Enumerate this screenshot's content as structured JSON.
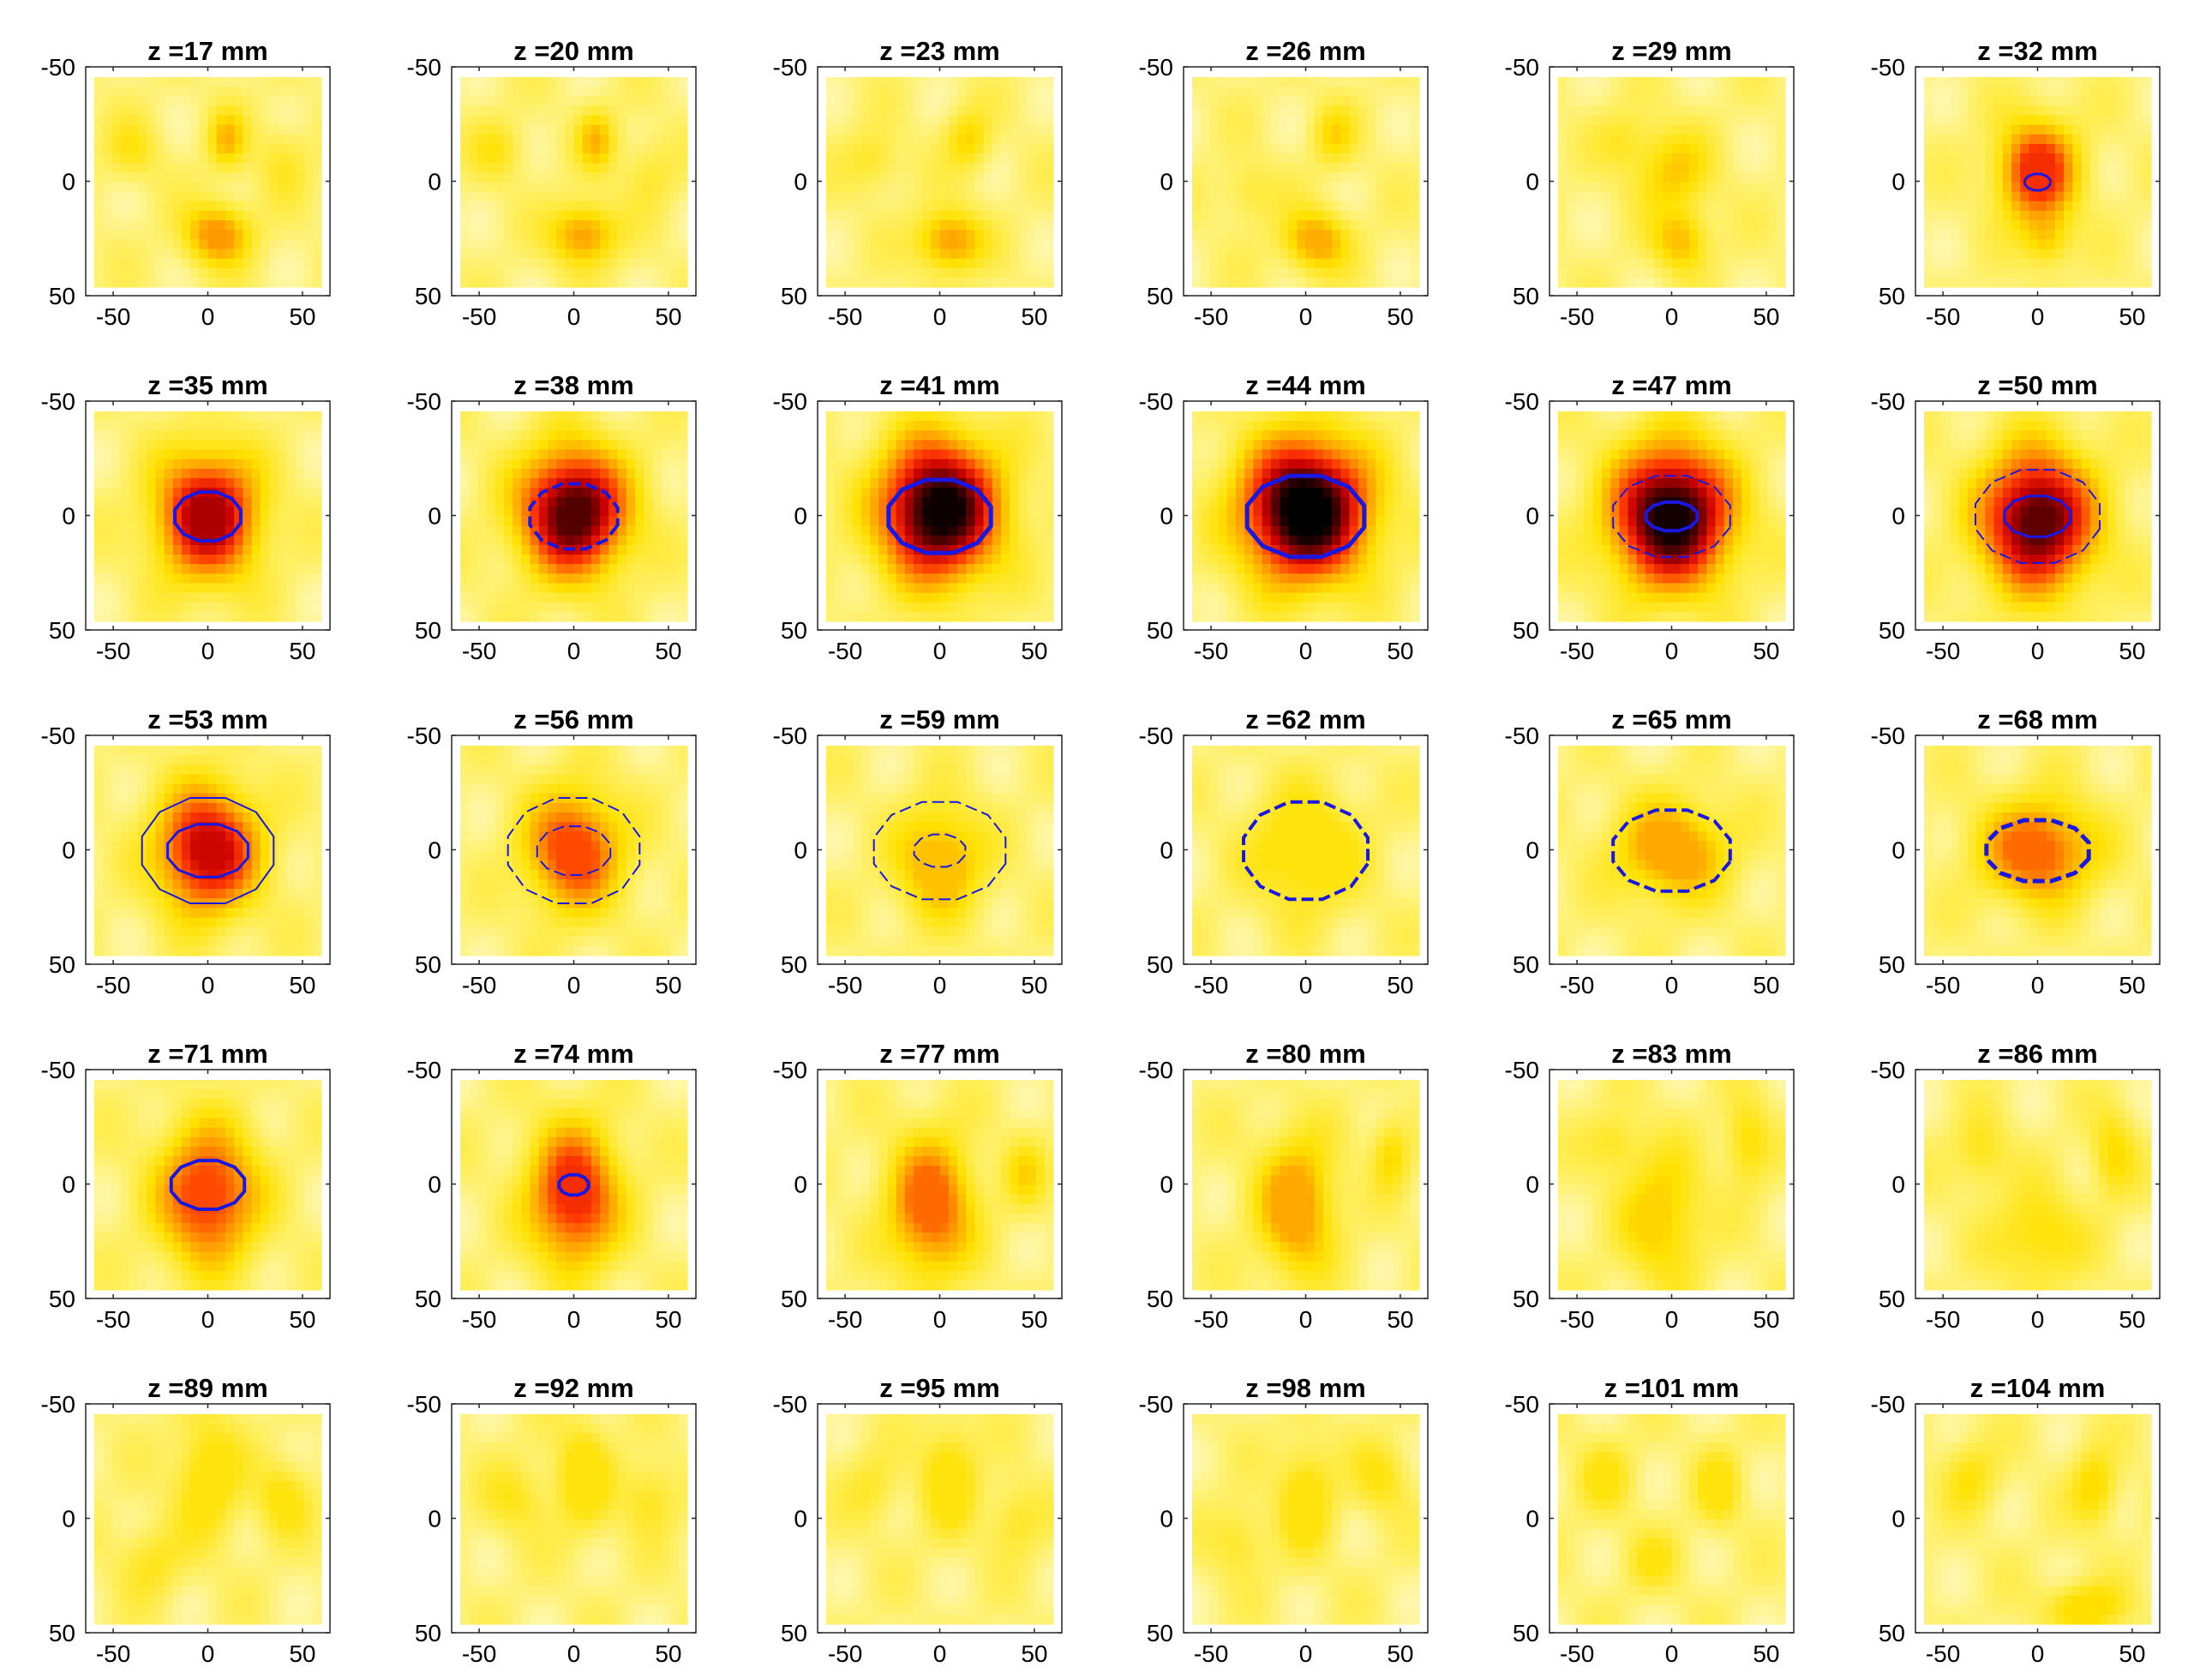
{
  "figure": {
    "description_units": "mm",
    "colormap": [
      "#ffffff",
      "#fff06a",
      "#ffe100",
      "#ff9a00",
      "#ff3a00",
      "#c80000",
      "#5a0000",
      "#000000"
    ]
  },
  "chart_data": {
    "type": "heatmap",
    "grid": {
      "rows": 5,
      "cols": 6
    },
    "x_ticks": [
      "-50",
      "0",
      "50"
    ],
    "y_ticks": [
      "-50",
      "0",
      "50"
    ],
    "xlim": [
      -60,
      60
    ],
    "ylim": [
      -50,
      50
    ],
    "panels": [
      {
        "title": "z =17 mm",
        "z": 17,
        "peak": 0.38,
        "blobs": [
          [
            5,
            25,
            0.34,
            12,
            10
          ],
          [
            10,
            -20,
            0.22,
            7,
            10
          ],
          [
            -40,
            -15,
            0.12,
            10,
            10
          ],
          [
            40,
            -10,
            0.1,
            10,
            12
          ]
        ],
        "contours": []
      },
      {
        "title": "z =20 mm",
        "z": 20,
        "peak": 0.37,
        "blobs": [
          [
            5,
            25,
            0.32,
            12,
            10
          ],
          [
            12,
            -20,
            0.22,
            7,
            10
          ],
          [
            -40,
            -15,
            0.12,
            10,
            10
          ],
          [
            40,
            -5,
            0.1,
            10,
            12
          ]
        ],
        "contours": []
      },
      {
        "title": "z =23 mm",
        "z": 23,
        "peak": 0.36,
        "blobs": [
          [
            5,
            28,
            0.32,
            12,
            10
          ],
          [
            15,
            -20,
            0.18,
            8,
            10
          ],
          [
            -35,
            -10,
            0.12,
            10,
            10
          ]
        ],
        "contours": []
      },
      {
        "title": "z =26 mm",
        "z": 26,
        "peak": 0.34,
        "blobs": [
          [
            5,
            28,
            0.3,
            12,
            10
          ],
          [
            15,
            -22,
            0.16,
            8,
            10
          ],
          [
            -30,
            5,
            0.1,
            10,
            10
          ]
        ],
        "contours": []
      },
      {
        "title": "z =29 mm",
        "z": 29,
        "peak": 0.3,
        "blobs": [
          [
            0,
            -5,
            0.2,
            14,
            14
          ],
          [
            5,
            28,
            0.24,
            10,
            10
          ],
          [
            -25,
            -20,
            0.1,
            10,
            10
          ]
        ],
        "contours": []
      },
      {
        "title": "z =32 mm",
        "z": 32,
        "peak": 0.55,
        "blobs": [
          [
            0,
            -5,
            0.55,
            14,
            16
          ],
          [
            5,
            28,
            0.18,
            9,
            9
          ]
        ],
        "contours": [
          {
            "rx": 7,
            "ry": 4,
            "w": 3,
            "dashed": false
          }
        ]
      },
      {
        "title": "z =35 mm",
        "z": 35,
        "peak": 0.7,
        "blobs": [
          [
            0,
            0,
            0.7,
            18,
            20
          ]
        ],
        "contours": [
          {
            "rx": 18,
            "ry": 12,
            "w": 4,
            "dashed": false
          }
        ]
      },
      {
        "title": "z =38 mm",
        "z": 38,
        "peak": 0.82,
        "blobs": [
          [
            0,
            -2,
            0.82,
            19,
            20
          ]
        ],
        "contours": [
          {
            "rx": 24,
            "ry": 16,
            "w": 4,
            "dashed": true
          }
        ]
      },
      {
        "title": "z =41 mm",
        "z": 41,
        "peak": 0.93,
        "blobs": [
          [
            0,
            -3,
            0.93,
            21,
            22
          ]
        ],
        "contours": [
          {
            "rx": 28,
            "ry": 18,
            "w": 5,
            "dashed": false
          }
        ]
      },
      {
        "title": "z =44 mm",
        "z": 44,
        "peak": 1.0,
        "blobs": [
          [
            0,
            -3,
            1.0,
            22,
            22
          ]
        ],
        "contours": [
          {
            "rx": 32,
            "ry": 20,
            "w": 5,
            "dashed": false
          }
        ]
      },
      {
        "title": "z =47 mm",
        "z": 47,
        "peak": 0.92,
        "blobs": [
          [
            0,
            0,
            0.92,
            21,
            22
          ]
        ],
        "contours": [
          {
            "rx": 32,
            "ry": 20,
            "w": 2,
            "dashed": true
          },
          {
            "rx": 14,
            "ry": 7,
            "w": 4,
            "dashed": false
          }
        ]
      },
      {
        "title": "z =50 mm",
        "z": 50,
        "peak": 0.8,
        "blobs": [
          [
            0,
            2,
            0.8,
            20,
            22
          ]
        ],
        "contours": [
          {
            "rx": 34,
            "ry": 23,
            "w": 2,
            "dashed": true
          },
          {
            "rx": 18,
            "ry": 10,
            "w": 3,
            "dashed": false
          }
        ]
      },
      {
        "title": "z =53 mm",
        "z": 53,
        "peak": 0.65,
        "blobs": [
          [
            0,
            0,
            0.65,
            18,
            20
          ]
        ],
        "contours": [
          {
            "rx": 36,
            "ry": 26,
            "w": 2,
            "dashed": false
          },
          {
            "rx": 22,
            "ry": 13,
            "w": 3,
            "dashed": false
          }
        ]
      },
      {
        "title": "z =56 mm",
        "z": 56,
        "peak": 0.5,
        "blobs": [
          [
            0,
            0,
            0.5,
            17,
            19
          ]
        ],
        "contours": [
          {
            "rx": 36,
            "ry": 26,
            "w": 2,
            "dashed": true
          },
          {
            "rx": 20,
            "ry": 12,
            "w": 2,
            "dashed": true
          }
        ]
      },
      {
        "title": "z =59 mm",
        "z": 59,
        "peak": 0.3,
        "blobs": [
          [
            0,
            5,
            0.3,
            16,
            18
          ]
        ],
        "contours": [
          {
            "rx": 36,
            "ry": 24,
            "w": 2,
            "dashed": true
          },
          {
            "rx": 14,
            "ry": 8,
            "w": 2,
            "dashed": true
          }
        ]
      },
      {
        "title": "z =62 mm",
        "z": 62,
        "peak": 0.22,
        "blobs": [
          [
            0,
            0,
            0.22,
            20,
            20
          ]
        ],
        "contours": [
          {
            "rx": 34,
            "ry": 24,
            "w": 4,
            "dashed": true
          }
        ]
      },
      {
        "title": "z =65 mm",
        "z": 65,
        "peak": 0.35,
        "blobs": [
          [
            0,
            0,
            0.35,
            20,
            16
          ]
        ],
        "contours": [
          {
            "rx": 32,
            "ry": 20,
            "w": 4,
            "dashed": true
          }
        ]
      },
      {
        "title": "z =68 mm",
        "z": 68,
        "peak": 0.45,
        "blobs": [
          [
            0,
            0,
            0.45,
            20,
            16
          ]
        ],
        "contours": [
          {
            "rx": 28,
            "ry": 15,
            "w": 5,
            "dashed": true
          }
        ]
      },
      {
        "title": "z =71 mm",
        "z": 71,
        "peak": 0.5,
        "blobs": [
          [
            0,
            5,
            0.5,
            18,
            22
          ]
        ],
        "contours": [
          {
            "rx": 20,
            "ry": 12,
            "w": 4,
            "dashed": false
          }
        ]
      },
      {
        "title": "z =74 mm",
        "z": 74,
        "peak": 0.55,
        "blobs": [
          [
            0,
            5,
            0.55,
            16,
            22
          ]
        ],
        "contours": [
          {
            "rx": 8,
            "ry": 5,
            "w": 4,
            "dashed": false
          }
        ]
      },
      {
        "title": "z =77 mm",
        "z": 77,
        "peak": 0.45,
        "blobs": [
          [
            -5,
            10,
            0.45,
            15,
            22
          ],
          [
            45,
            -5,
            0.15,
            8,
            12
          ]
        ],
        "contours": []
      },
      {
        "title": "z =80 mm",
        "z": 80,
        "peak": 0.35,
        "blobs": [
          [
            -5,
            10,
            0.35,
            14,
            22
          ],
          [
            45,
            -15,
            0.18,
            7,
            12
          ]
        ],
        "contours": []
      },
      {
        "title": "z =83 mm",
        "z": 83,
        "peak": 0.26,
        "blobs": [
          [
            -5,
            15,
            0.22,
            15,
            22
          ],
          [
            40,
            -20,
            0.18,
            8,
            14
          ],
          [
            -30,
            -20,
            0.12,
            10,
            10
          ]
        ],
        "contours": []
      },
      {
        "title": "z =86 mm",
        "z": 86,
        "peak": 0.24,
        "blobs": [
          [
            0,
            25,
            0.18,
            16,
            16
          ],
          [
            40,
            -15,
            0.18,
            8,
            14
          ],
          [
            -30,
            -15,
            0.14,
            10,
            12
          ]
        ],
        "contours": []
      },
      {
        "title": "z =89 mm",
        "z": 89,
        "peak": 0.22,
        "blobs": [
          [
            0,
            -20,
            0.2,
            12,
            20
          ],
          [
            40,
            -10,
            0.16,
            10,
            12
          ],
          [
            -30,
            20,
            0.12,
            12,
            12
          ]
        ],
        "contours": []
      },
      {
        "title": "z =92 mm",
        "z": 92,
        "peak": 0.22,
        "blobs": [
          [
            5,
            -20,
            0.2,
            10,
            18
          ],
          [
            40,
            -10,
            0.14,
            10,
            12
          ],
          [
            -30,
            -10,
            0.12,
            12,
            12
          ]
        ],
        "contours": []
      },
      {
        "title": "z =95 mm",
        "z": 95,
        "peak": 0.22,
        "blobs": [
          [
            5,
            -20,
            0.2,
            10,
            18
          ],
          [
            40,
            0,
            0.12,
            10,
            12
          ],
          [
            -35,
            -15,
            0.1,
            10,
            12
          ]
        ],
        "contours": []
      },
      {
        "title": "z =98 mm",
        "z": 98,
        "peak": 0.22,
        "blobs": [
          [
            0,
            -10,
            0.2,
            10,
            18
          ],
          [
            40,
            -20,
            0.14,
            10,
            12
          ],
          [
            -35,
            10,
            0.12,
            10,
            12
          ]
        ],
        "contours": []
      },
      {
        "title": "z =101 mm",
        "z": 101,
        "peak": 0.22,
        "blobs": [
          [
            -35,
            -20,
            0.14,
            10,
            12
          ],
          [
            25,
            -15,
            0.18,
            8,
            12
          ],
          [
            -10,
            20,
            0.12,
            10,
            10
          ]
        ],
        "contours": []
      },
      {
        "title": "z =104 mm",
        "z": 104,
        "peak": 0.24,
        "blobs": [
          [
            -35,
            -20,
            0.14,
            10,
            12
          ],
          [
            30,
            -15,
            0.2,
            8,
            12
          ],
          [
            25,
            42,
            0.22,
            14,
            8
          ]
        ],
        "contours": []
      }
    ]
  }
}
